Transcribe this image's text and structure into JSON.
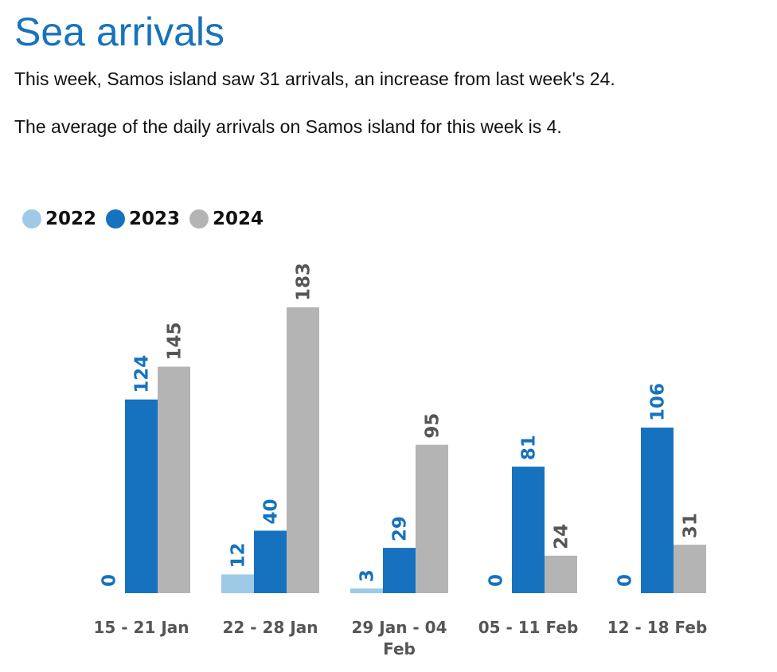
{
  "title": "Sea arrivals",
  "summary": "This week, Samos island saw 31 arrivals, an increase from last week's 24.",
  "average_text": "The average of the daily arrivals on Samos island for this week is 4.",
  "colors": {
    "2022": "#9ecae8",
    "2023": "#1672be",
    "2024": "#b4b4b4",
    "label_2022": "#1672be",
    "label_2023": "#1672be",
    "label_2024": "#555555"
  },
  "legend": [
    {
      "name": "2022",
      "color": "#9ecae8"
    },
    {
      "name": "2023",
      "color": "#1672be"
    },
    {
      "name": "2024",
      "color": "#b4b4b4"
    }
  ],
  "chart_data": {
    "type": "bar",
    "title": "",
    "xlabel": "",
    "ylabel": "",
    "ylim": [
      0,
      183
    ],
    "grid": false,
    "legend_position": "top-left",
    "categories": [
      "15 - 21 Jan",
      "22 - 28 Jan",
      "29 Jan - 04 Feb",
      "05 - 11 Feb",
      "12 - 18 Feb"
    ],
    "category_lines": [
      [
        "15 - 21 Jan"
      ],
      [
        "22 - 28 Jan"
      ],
      [
        "29 Jan - 04",
        "Feb"
      ],
      [
        "05 - 11 Feb"
      ],
      [
        "12 - 18 Feb"
      ]
    ],
    "series": [
      {
        "name": "2022",
        "values": [
          0,
          12,
          3,
          0,
          0
        ]
      },
      {
        "name": "2023",
        "values": [
          124,
          40,
          29,
          81,
          106
        ]
      },
      {
        "name": "2024",
        "values": [
          145,
          183,
          95,
          24,
          31
        ]
      }
    ]
  }
}
